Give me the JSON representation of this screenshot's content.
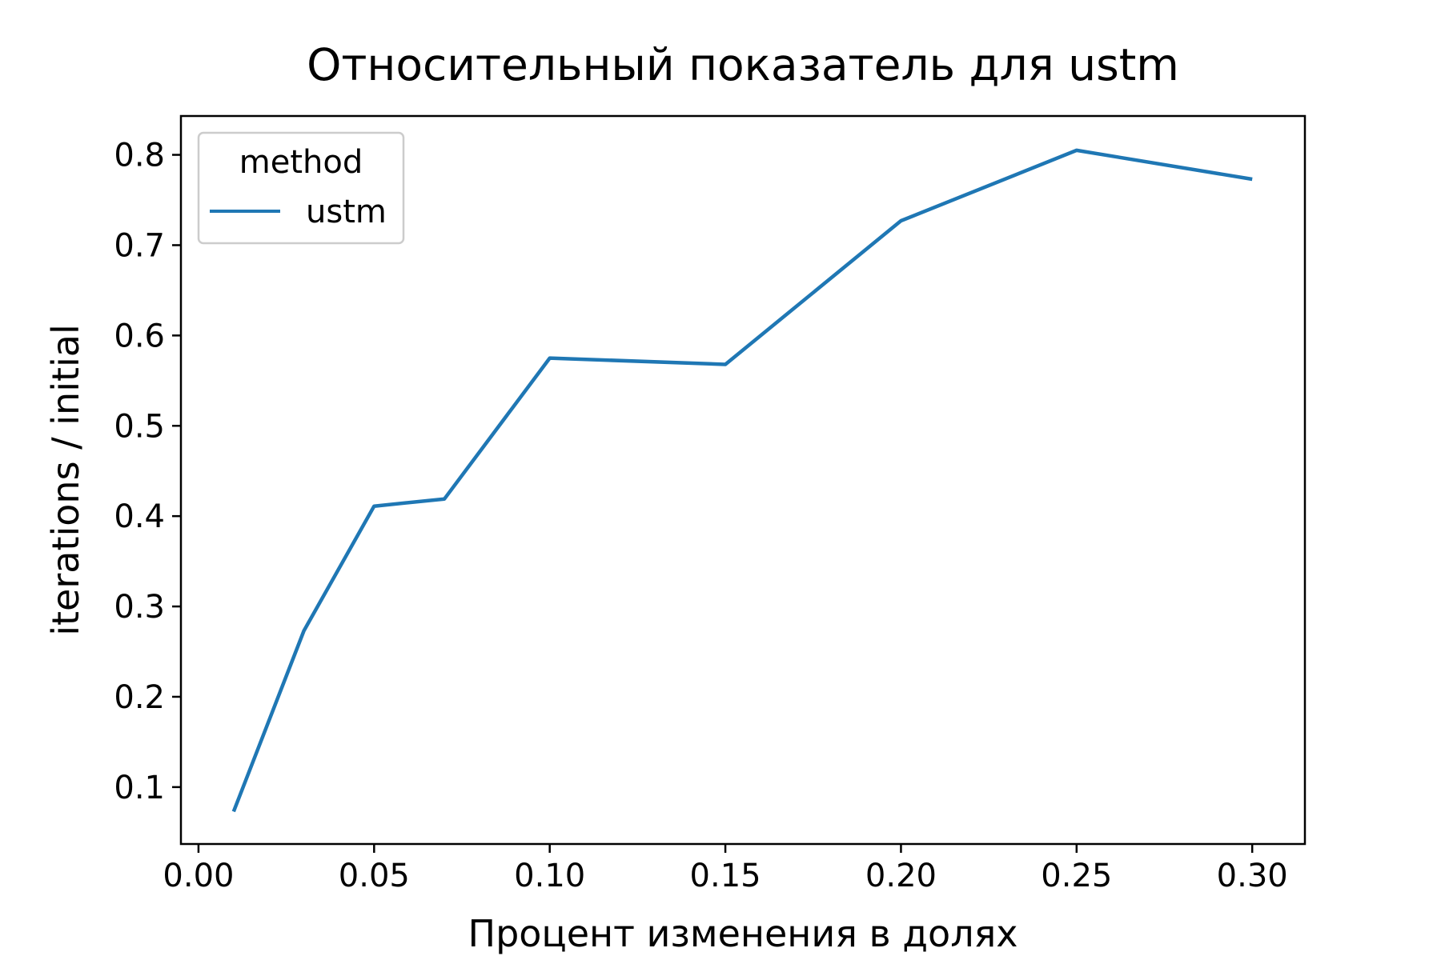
{
  "chart_data": {
    "type": "line",
    "title": "Относительный показатель для ustm",
    "xlabel": "Процент изменения в долях",
    "ylabel": "iterations / initial",
    "xlim": [
      -0.005,
      0.315
    ],
    "ylim": [
      0.037,
      0.843
    ],
    "x_ticks": [
      0.0,
      0.05,
      0.1,
      0.15,
      0.2,
      0.25,
      0.3
    ],
    "x_tick_labels": [
      "0.00",
      "0.05",
      "0.10",
      "0.15",
      "0.20",
      "0.25",
      "0.30"
    ],
    "y_ticks": [
      0.1,
      0.2,
      0.3,
      0.4,
      0.5,
      0.6,
      0.7,
      0.8
    ],
    "y_tick_labels": [
      "0.1",
      "0.2",
      "0.3",
      "0.4",
      "0.5",
      "0.6",
      "0.7",
      "0.8"
    ],
    "grid": false,
    "legend": {
      "title": "method",
      "placement": "top-left"
    },
    "series": [
      {
        "name": "ustm",
        "color": "#1f77b4",
        "x": [
          0.01,
          0.03,
          0.05,
          0.07,
          0.1,
          0.15,
          0.2,
          0.25,
          0.3
        ],
        "y": [
          0.073,
          0.273,
          0.411,
          0.419,
          0.575,
          0.568,
          0.727,
          0.805,
          0.773
        ]
      }
    ]
  }
}
